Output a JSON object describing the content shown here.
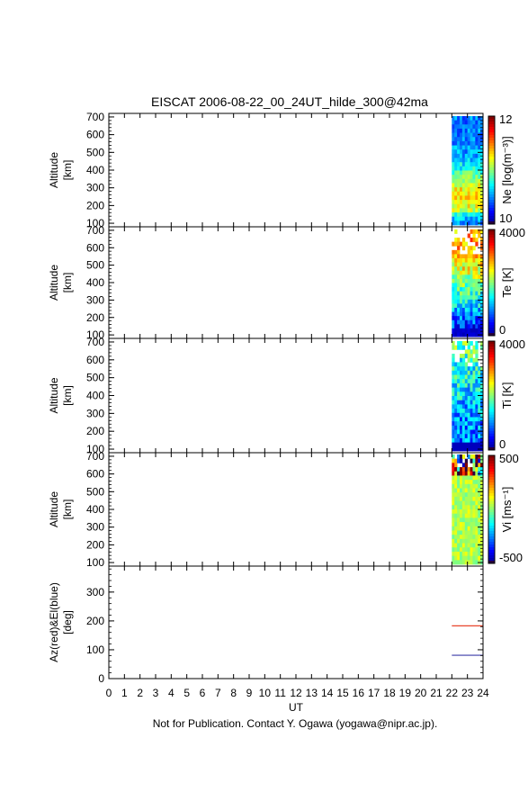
{
  "title": "EISCAT 2006-08-22_00_24UT_hilde_300@42ma",
  "footer": "Not for Publication. Contact Y. Ogawa (yogawa@nipr.ac.jp).",
  "colors": {
    "az_line": "#e8452c",
    "el_line": "#3a3aa8"
  },
  "chart_data": [
    {
      "type": "heatmap",
      "ylabel": [
        "Altitude",
        "[km]"
      ],
      "yticks": [
        100,
        200,
        300,
        400,
        500,
        600,
        700
      ],
      "ylim": [
        80,
        720
      ],
      "colorbar": {
        "label": "Ne [log(m⁻³)]",
        "min": "10",
        "max": "12"
      },
      "data_x_range_ut": [
        22,
        24
      ],
      "x_range_ut": [
        0,
        24
      ]
    },
    {
      "type": "heatmap",
      "ylabel": [
        "Altitude",
        "[km]"
      ],
      "yticks": [
        100,
        200,
        300,
        400,
        500,
        600,
        700
      ],
      "ylim": [
        80,
        720
      ],
      "colorbar": {
        "label": "Te [K]",
        "min": "0",
        "max": "4000"
      },
      "data_x_range_ut": [
        22,
        24
      ],
      "x_range_ut": [
        0,
        24
      ]
    },
    {
      "type": "heatmap",
      "ylabel": [
        "Altitude",
        "[km]"
      ],
      "yticks": [
        100,
        200,
        300,
        400,
        500,
        600,
        700
      ],
      "ylim": [
        80,
        720
      ],
      "colorbar": {
        "label": "Ti [K]",
        "min": "0",
        "max": "4000"
      },
      "data_x_range_ut": [
        22,
        24
      ],
      "x_range_ut": [
        0,
        24
      ]
    },
    {
      "type": "heatmap",
      "ylabel": [
        "Altitude",
        "[km]"
      ],
      "yticks": [
        100,
        200,
        300,
        400,
        500,
        600,
        700
      ],
      "ylim": [
        80,
        720
      ],
      "colorbar": {
        "label": "Vi [ms⁻¹]",
        "min": "-500",
        "max": "500"
      },
      "data_x_range_ut": [
        22,
        24
      ],
      "x_range_ut": [
        0,
        24
      ]
    },
    {
      "type": "line",
      "ylabel": [
        "Az(red)&El(blue)",
        "[deg]"
      ],
      "yticks": [
        0,
        100,
        200,
        300
      ],
      "ylim": [
        0,
        390
      ],
      "x_range_ut": [
        0,
        24
      ],
      "xlabel": "UT",
      "xticks": [
        "0",
        "1",
        "2",
        "3",
        "4",
        "5",
        "6",
        "7",
        "8",
        "9",
        "10",
        "11",
        "12",
        "13",
        "14",
        "15",
        "16",
        "17",
        "18",
        "19",
        "20",
        "21",
        "22",
        "23",
        "24"
      ],
      "series": [
        {
          "color_key": "az_line",
          "x": [
            22,
            24
          ],
          "y": [
            183,
            183
          ]
        },
        {
          "color_key": "el_line",
          "x": [
            22,
            24
          ],
          "y": [
            81,
            81
          ]
        }
      ]
    }
  ]
}
